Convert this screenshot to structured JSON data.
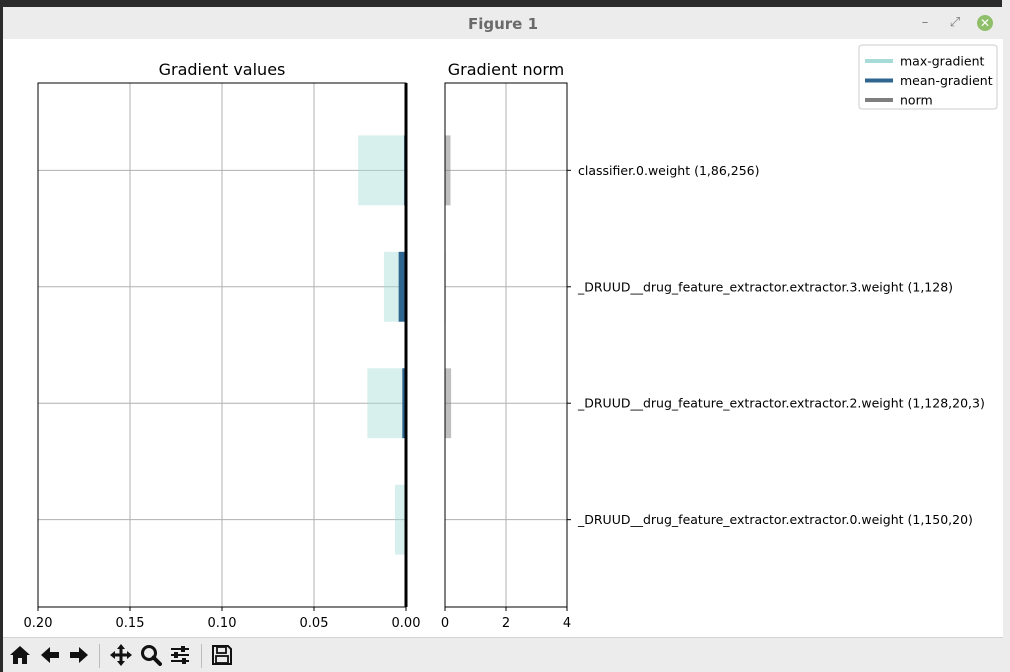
{
  "window": {
    "title": "Figure 1"
  },
  "toolbar": {
    "icons": [
      "home-icon",
      "back-arrow-icon",
      "forward-arrow-icon",
      "pan-icon",
      "zoom-icon",
      "configure-subplots-icon",
      "save-icon"
    ]
  },
  "colors": {
    "max_gradient": "#a6dbd8",
    "mean_gradient": "#2f6690",
    "norm": "#7f7f7f"
  },
  "chart_data": [
    {
      "type": "bar",
      "orientation": "horizontal",
      "title": "Gradient values",
      "xlim": [
        0.2,
        0.0
      ],
      "xticks": [
        "0.20",
        "0.15",
        "0.10",
        "0.05",
        "0.00"
      ],
      "categories": [
        "classifier.0.weight (1,86,256)",
        "_DRUUD__drug_feature_extractor.extractor.3.weight (1,128)",
        "_DRUUD__drug_feature_extractor.extractor.2.weight (1,128,20,3)",
        "_DRUUD__drug_feature_extractor.extractor.0.weight (1,150,20)"
      ],
      "series": [
        {
          "name": "max-gradient",
          "values": [
            0.026,
            0.012,
            0.021,
            0.006
          ]
        },
        {
          "name": "mean-gradient",
          "values": [
            0.001,
            0.004,
            0.002,
            0.0005
          ]
        }
      ],
      "grid": true
    },
    {
      "type": "bar",
      "orientation": "horizontal",
      "title": "Gradient norm",
      "xlim": [
        0,
        4
      ],
      "xticks": [
        "0",
        "2",
        "4"
      ],
      "categories": [
        "classifier.0.weight (1,86,256)",
        "_DRUUD__drug_feature_extractor.extractor.3.weight (1,128)",
        "_DRUUD__drug_feature_extractor.extractor.2.weight (1,128,20,3)",
        "_DRUUD__drug_feature_extractor.extractor.0.weight (1,150,20)"
      ],
      "series": [
        {
          "name": "norm",
          "values": [
            0.18,
            0.02,
            0.2,
            0.0
          ]
        }
      ],
      "grid": true,
      "legend": {
        "position": "top-right",
        "entries": [
          "max-gradient",
          "mean-gradient",
          "norm"
        ]
      }
    }
  ]
}
